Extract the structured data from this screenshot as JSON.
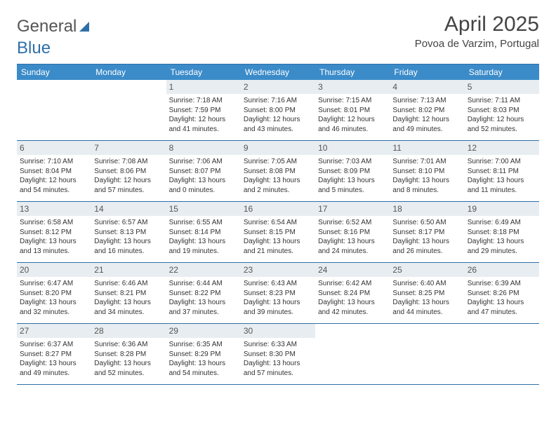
{
  "logo": {
    "text1": "General",
    "text2": "Blue"
  },
  "title": "April 2025",
  "location": "Povoa de Varzim, Portugal",
  "header_bg": "#3b8bc9",
  "border_color": "#2f6fa7",
  "daynum_bg": "#e8edf1",
  "dayHeaders": [
    "Sunday",
    "Monday",
    "Tuesday",
    "Wednesday",
    "Thursday",
    "Friday",
    "Saturday"
  ],
  "weeks": [
    [
      null,
      null,
      {
        "n": "1",
        "sunrise": "7:18 AM",
        "sunset": "7:59 PM",
        "dl": "12 hours and 41 minutes."
      },
      {
        "n": "2",
        "sunrise": "7:16 AM",
        "sunset": "8:00 PM",
        "dl": "12 hours and 43 minutes."
      },
      {
        "n": "3",
        "sunrise": "7:15 AM",
        "sunset": "8:01 PM",
        "dl": "12 hours and 46 minutes."
      },
      {
        "n": "4",
        "sunrise": "7:13 AM",
        "sunset": "8:02 PM",
        "dl": "12 hours and 49 minutes."
      },
      {
        "n": "5",
        "sunrise": "7:11 AM",
        "sunset": "8:03 PM",
        "dl": "12 hours and 52 minutes."
      }
    ],
    [
      {
        "n": "6",
        "sunrise": "7:10 AM",
        "sunset": "8:04 PM",
        "dl": "12 hours and 54 minutes."
      },
      {
        "n": "7",
        "sunrise": "7:08 AM",
        "sunset": "8:06 PM",
        "dl": "12 hours and 57 minutes."
      },
      {
        "n": "8",
        "sunrise": "7:06 AM",
        "sunset": "8:07 PM",
        "dl": "13 hours and 0 minutes."
      },
      {
        "n": "9",
        "sunrise": "7:05 AM",
        "sunset": "8:08 PM",
        "dl": "13 hours and 2 minutes."
      },
      {
        "n": "10",
        "sunrise": "7:03 AM",
        "sunset": "8:09 PM",
        "dl": "13 hours and 5 minutes."
      },
      {
        "n": "11",
        "sunrise": "7:01 AM",
        "sunset": "8:10 PM",
        "dl": "13 hours and 8 minutes."
      },
      {
        "n": "12",
        "sunrise": "7:00 AM",
        "sunset": "8:11 PM",
        "dl": "13 hours and 11 minutes."
      }
    ],
    [
      {
        "n": "13",
        "sunrise": "6:58 AM",
        "sunset": "8:12 PM",
        "dl": "13 hours and 13 minutes."
      },
      {
        "n": "14",
        "sunrise": "6:57 AM",
        "sunset": "8:13 PM",
        "dl": "13 hours and 16 minutes."
      },
      {
        "n": "15",
        "sunrise": "6:55 AM",
        "sunset": "8:14 PM",
        "dl": "13 hours and 19 minutes."
      },
      {
        "n": "16",
        "sunrise": "6:54 AM",
        "sunset": "8:15 PM",
        "dl": "13 hours and 21 minutes."
      },
      {
        "n": "17",
        "sunrise": "6:52 AM",
        "sunset": "8:16 PM",
        "dl": "13 hours and 24 minutes."
      },
      {
        "n": "18",
        "sunrise": "6:50 AM",
        "sunset": "8:17 PM",
        "dl": "13 hours and 26 minutes."
      },
      {
        "n": "19",
        "sunrise": "6:49 AM",
        "sunset": "8:18 PM",
        "dl": "13 hours and 29 minutes."
      }
    ],
    [
      {
        "n": "20",
        "sunrise": "6:47 AM",
        "sunset": "8:20 PM",
        "dl": "13 hours and 32 minutes."
      },
      {
        "n": "21",
        "sunrise": "6:46 AM",
        "sunset": "8:21 PM",
        "dl": "13 hours and 34 minutes."
      },
      {
        "n": "22",
        "sunrise": "6:44 AM",
        "sunset": "8:22 PM",
        "dl": "13 hours and 37 minutes."
      },
      {
        "n": "23",
        "sunrise": "6:43 AM",
        "sunset": "8:23 PM",
        "dl": "13 hours and 39 minutes."
      },
      {
        "n": "24",
        "sunrise": "6:42 AM",
        "sunset": "8:24 PM",
        "dl": "13 hours and 42 minutes."
      },
      {
        "n": "25",
        "sunrise": "6:40 AM",
        "sunset": "8:25 PM",
        "dl": "13 hours and 44 minutes."
      },
      {
        "n": "26",
        "sunrise": "6:39 AM",
        "sunset": "8:26 PM",
        "dl": "13 hours and 47 minutes."
      }
    ],
    [
      {
        "n": "27",
        "sunrise": "6:37 AM",
        "sunset": "8:27 PM",
        "dl": "13 hours and 49 minutes."
      },
      {
        "n": "28",
        "sunrise": "6:36 AM",
        "sunset": "8:28 PM",
        "dl": "13 hours and 52 minutes."
      },
      {
        "n": "29",
        "sunrise": "6:35 AM",
        "sunset": "8:29 PM",
        "dl": "13 hours and 54 minutes."
      },
      {
        "n": "30",
        "sunrise": "6:33 AM",
        "sunset": "8:30 PM",
        "dl": "13 hours and 57 minutes."
      },
      null,
      null,
      null
    ]
  ],
  "labels": {
    "sunrise": "Sunrise:",
    "sunset": "Sunset:",
    "daylight": "Daylight:"
  }
}
